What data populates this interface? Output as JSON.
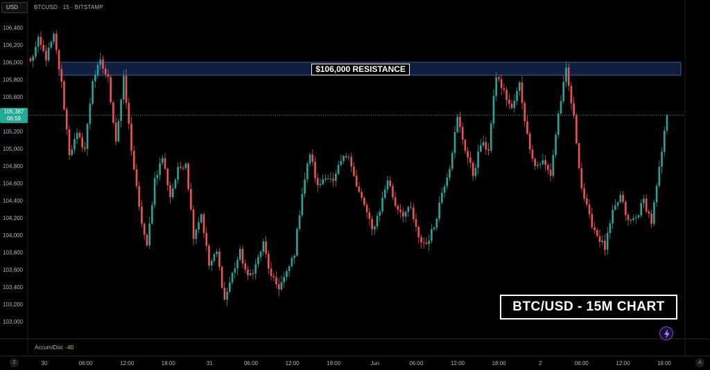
{
  "header": {
    "currency": "USD",
    "symbol_title": "BTCUSD · 15 · BITSTAMP"
  },
  "price_scale": {
    "current_price": "105,387",
    "countdown": "06:59"
  },
  "annotations": {
    "resistance_label": "$106,000 RESISTANCE",
    "chart_label": "BTC/USD - 15M CHART"
  },
  "indicator": {
    "name": "Accum/Dist",
    "value": "-40"
  },
  "controls": {
    "left_button": "Z",
    "right_button": "A"
  },
  "colors": {
    "background": "#000000",
    "up_candle": "#26a69a",
    "down_candle": "#ef5350",
    "resistance_zone": "#0f1f3d",
    "resistance_border": "#3b5bab",
    "price_label": "#22ab94"
  },
  "chart_data": {
    "type": "candlestick",
    "title": "",
    "ylim": [
      102900,
      106500
    ],
    "yticks": [
      106400,
      106200,
      106000,
      105800,
      105600,
      105400,
      105200,
      105000,
      104800,
      104600,
      104400,
      104200,
      104000,
      103800,
      103600,
      103400,
      103200,
      103000
    ],
    "ytick_labels": [
      "106,400",
      "106,200",
      "106,000",
      "105,800",
      "105,600",
      "105,400",
      "105,200",
      "105,000",
      "104,800",
      "104,600",
      "104,400",
      "104,200",
      "104,000",
      "103,800",
      "103,600",
      "103,400",
      "103,200",
      "103,000"
    ],
    "xtick_labels": [
      "30",
      "06:00",
      "12:00",
      "18:00",
      "31",
      "06:00",
      "12:00",
      "18:00",
      "Jun",
      "06:00",
      "12:00",
      "18:00",
      "2",
      "06:00",
      "12:00",
      "18:00"
    ],
    "resistance_zone": [
      105850,
      106000
    ],
    "current_price": 105387,
    "grid": false,
    "path": [
      106000,
      106250,
      106050,
      106300,
      105750,
      104950,
      105150,
      105000,
      105800,
      106000,
      105800,
      105100,
      105800,
      105000,
      104300,
      103850,
      104650,
      104900,
      104450,
      104750,
      104850,
      104000,
      104250,
      103650,
      103800,
      103250,
      103550,
      103800,
      103500,
      103650,
      103900,
      103500,
      103400,
      103550,
      103800,
      104500,
      104950,
      104550,
      104700,
      104600,
      104850,
      104950,
      104550,
      104350,
      104050,
      104300,
      104650,
      104350,
      104250,
      104300,
      103950,
      103900,
      104100,
      104500,
      104800,
      105350,
      105000,
      104700,
      105050,
      105000,
      105850,
      105650,
      105450,
      105750,
      105150,
      104800,
      104850,
      104700,
      105400,
      105900,
      105350,
      104550,
      104200,
      104000,
      103850,
      104250,
      104450,
      104150,
      104200,
      104400,
      104150,
      104750,
      105387
    ],
    "steps_per_segment": 3
  }
}
